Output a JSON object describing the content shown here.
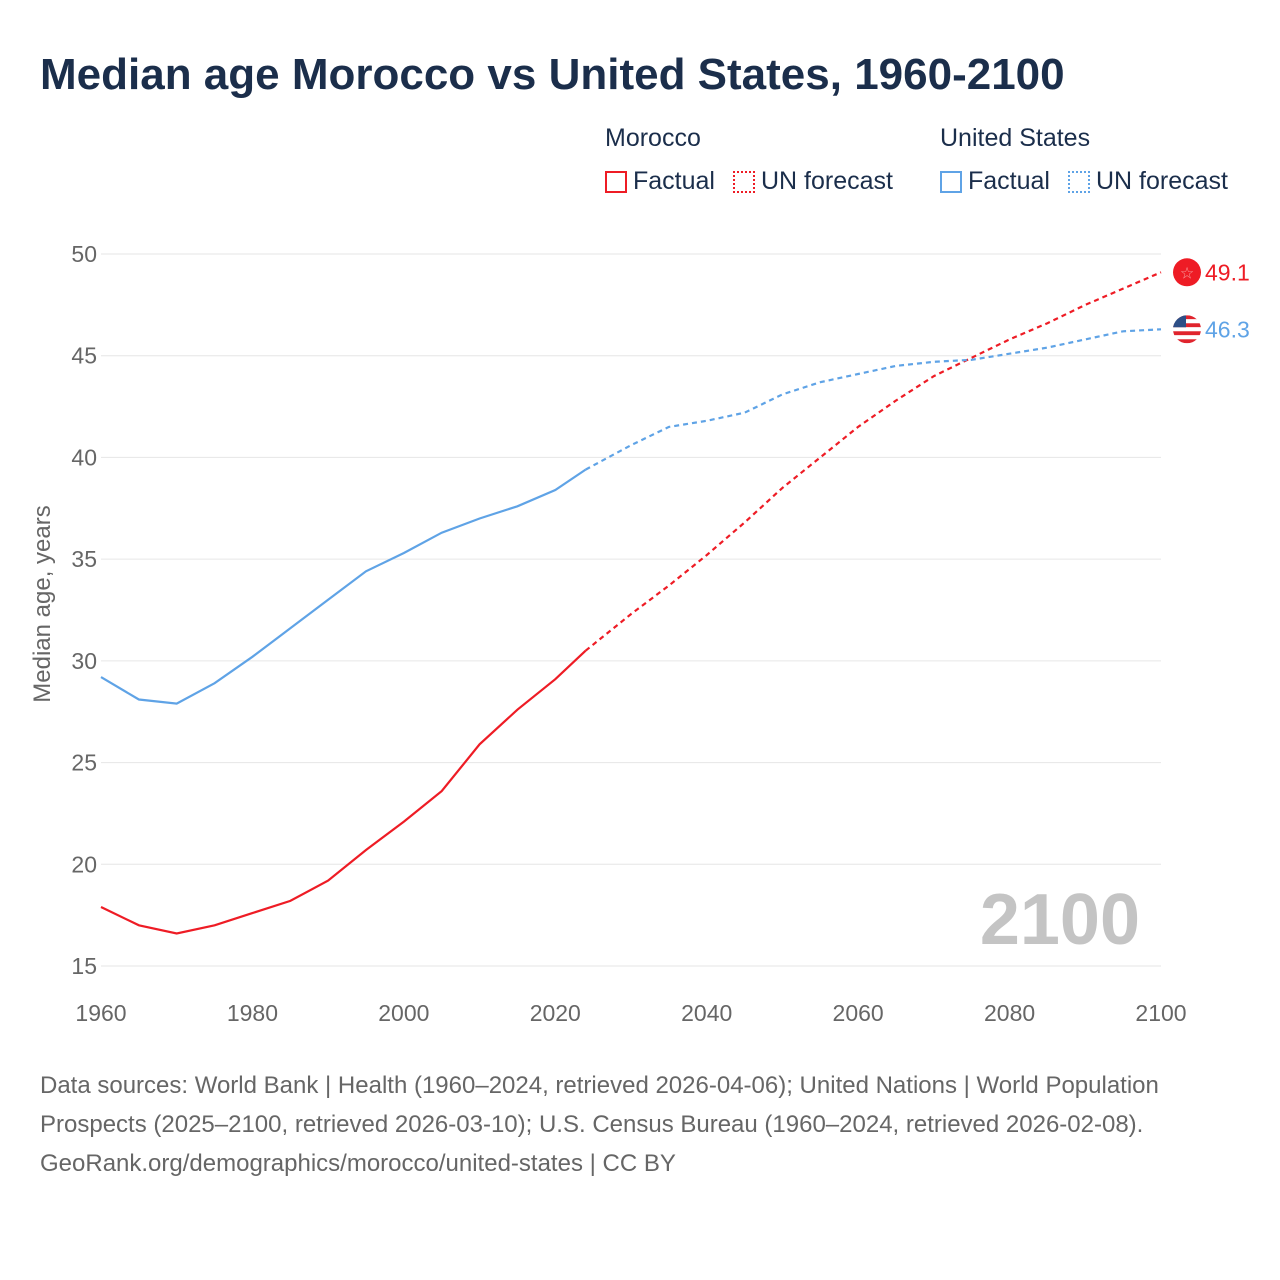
{
  "title": "Median age Morocco vs United States, 1960-2100",
  "legend": {
    "groups": [
      {
        "name": "Morocco",
        "items": [
          "Factual",
          "UN forecast"
        ],
        "color": "#ee1c25"
      },
      {
        "name": "United States",
        "items": [
          "Factual",
          "UN forecast"
        ],
        "color": "#5fa3e6"
      }
    ]
  },
  "watermark_year": "2100",
  "footer": {
    "sources": "Data sources: World Bank | Health (1960–2024, retrieved 2026-04-06); United Nations | World Population Prospects (2025–2100, retrieved 2026-03-10); U.S. Census Bureau (1960–2024, retrieved 2026-02-08).",
    "attribution": "GeoRank.org/demographics/morocco/united-states | CC BY"
  },
  "chart_data": {
    "type": "line",
    "title": "Median age Morocco vs United States, 1960-2100",
    "xlabel": "",
    "ylabel": "Median age, years",
    "xlim": [
      1960,
      2100
    ],
    "ylim": [
      15,
      50
    ],
    "xticks": [
      1960,
      1980,
      2000,
      2020,
      2040,
      2060,
      2080,
      2100
    ],
    "yticks": [
      15,
      20,
      25,
      30,
      35,
      40,
      45,
      50
    ],
    "grid": true,
    "forecast_start": 2024,
    "x": [
      1960,
      1965,
      1970,
      1975,
      1980,
      1985,
      1990,
      1995,
      2000,
      2005,
      2010,
      2015,
      2020,
      2024,
      2030,
      2035,
      2040,
      2045,
      2050,
      2055,
      2060,
      2065,
      2070,
      2075,
      2080,
      2085,
      2090,
      2095,
      2100
    ],
    "series": [
      {
        "name": "Morocco",
        "color": "#ee1c25",
        "end_label": "49.1",
        "values": [
          17.9,
          17.0,
          16.6,
          17.0,
          17.6,
          18.2,
          19.2,
          20.7,
          22.1,
          23.6,
          25.9,
          27.6,
          29.1,
          30.5,
          32.3,
          33.7,
          35.2,
          36.8,
          38.5,
          40.0,
          41.5,
          42.8,
          44.0,
          44.9,
          45.8,
          46.6,
          47.5,
          48.3,
          49.1
        ]
      },
      {
        "name": "United States",
        "color": "#5fa3e6",
        "end_label": "46.3",
        "values": [
          29.2,
          28.1,
          27.9,
          28.9,
          30.2,
          31.6,
          33.0,
          34.4,
          35.3,
          36.3,
          37.0,
          37.6,
          38.4,
          39.4,
          40.6,
          41.5,
          41.8,
          42.2,
          43.1,
          43.7,
          44.1,
          44.5,
          44.7,
          44.8,
          45.1,
          45.4,
          45.8,
          46.2,
          46.3
        ]
      }
    ]
  }
}
